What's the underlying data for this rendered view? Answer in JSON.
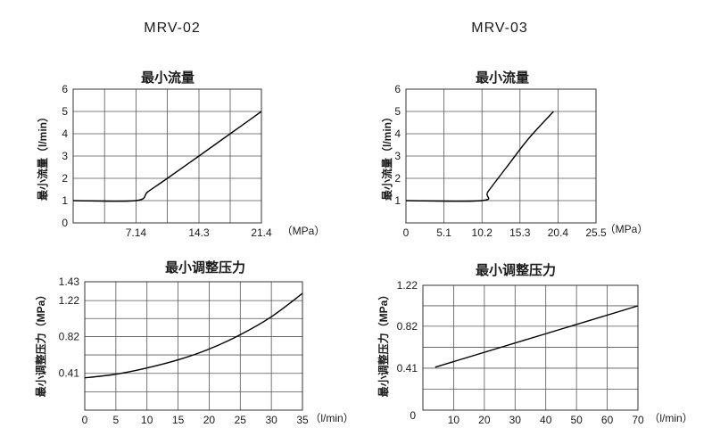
{
  "models": [
    "MRV-02",
    "MRV-03"
  ],
  "chart_data": [
    {
      "type": "line",
      "model": "MRV-02",
      "title": "最小流量",
      "ylabel": "最小流量（l/min）",
      "xunit": "（MPa）",
      "xlim": [
        0,
        21.4
      ],
      "ylim": [
        0,
        6
      ],
      "xgrid": [
        0,
        3.57,
        7.14,
        10.71,
        14.3,
        17.85,
        21.4
      ],
      "ygrid": [
        0,
        1,
        2,
        3,
        4,
        5,
        6
      ],
      "xticks": [
        {
          "v": 7.14,
          "t": "7.14"
        },
        {
          "v": 14.3,
          "t": "14.3"
        },
        {
          "v": 21.4,
          "t": "21.4"
        }
      ],
      "yticks": [
        {
          "v": 0,
          "t": "0"
        },
        {
          "v": 1,
          "t": "1"
        },
        {
          "v": 2,
          "t": "2"
        },
        {
          "v": 3,
          "t": "3"
        },
        {
          "v": 4,
          "t": "4"
        },
        {
          "v": 5,
          "t": "5"
        },
        {
          "v": 6,
          "t": "6"
        }
      ],
      "series": [
        {
          "name": "min flow",
          "x": [
            0,
            7.14,
            8.5,
            10.71,
            14.3,
            17.85,
            21.4
          ],
          "y": [
            1,
            1,
            1.4,
            2.0,
            3.0,
            4.0,
            5.0
          ]
        }
      ]
    },
    {
      "type": "line",
      "model": "MRV-03",
      "title": "最小流量",
      "ylabel": "最小流量（l/min）",
      "xunit": "（MPa）",
      "xlim": [
        0,
        25.5
      ],
      "ylim": [
        0,
        6
      ],
      "xgrid": [
        0,
        5.1,
        10.2,
        15.3,
        20.4,
        25.5
      ],
      "ygrid": [
        0,
        1,
        2,
        3,
        4,
        5,
        6
      ],
      "xticks": [
        {
          "v": 0,
          "t": "0"
        },
        {
          "v": 5.1,
          "t": "5.1"
        },
        {
          "v": 10.2,
          "t": "10.2"
        },
        {
          "v": 15.3,
          "t": "15.3"
        },
        {
          "v": 20.4,
          "t": "20.4"
        },
        {
          "v": 25.5,
          "t": "25.5"
        }
      ],
      "yticks": [
        {
          "v": 1,
          "t": "1"
        },
        {
          "v": 2,
          "t": "2"
        },
        {
          "v": 3,
          "t": "3"
        },
        {
          "v": 4,
          "t": "4"
        },
        {
          "v": 5,
          "t": "5"
        },
        {
          "v": 6,
          "t": "6"
        }
      ],
      "series": [
        {
          "name": "min flow",
          "x": [
            0,
            10.2,
            11,
            13.5,
            16.5,
            19.8
          ],
          "y": [
            1,
            1,
            1.4,
            2.5,
            3.8,
            5.0
          ]
        }
      ]
    },
    {
      "type": "line",
      "model": "MRV-02",
      "title": "最小调整压力",
      "ylabel": "最小调整压力（MPa）",
      "xunit": "（l/min）",
      "xlim": [
        0,
        35
      ],
      "ylim": [
        0,
        1.43
      ],
      "xgrid": [
        0,
        5,
        10,
        15,
        20,
        25,
        30,
        35
      ],
      "ygrid": [
        0,
        0.205,
        0.41,
        0.615,
        0.82,
        1.02,
        1.22,
        1.43
      ],
      "xticks": [
        {
          "v": 0,
          "t": "0"
        },
        {
          "v": 5,
          "t": "5"
        },
        {
          "v": 10,
          "t": "10"
        },
        {
          "v": 15,
          "t": "15"
        },
        {
          "v": 20,
          "t": "20"
        },
        {
          "v": 25,
          "t": "25"
        },
        {
          "v": 30,
          "t": "30"
        },
        {
          "v": 35,
          "t": "35"
        }
      ],
      "yticks": [
        {
          "v": 0.41,
          "t": "0.41"
        },
        {
          "v": 0.82,
          "t": "0.82"
        },
        {
          "v": 1.22,
          "t": "1.22"
        },
        {
          "v": 1.43,
          "t": "1.43"
        }
      ],
      "series": [
        {
          "name": "min adjust pressure",
          "x": [
            0,
            5,
            10,
            15,
            20,
            25,
            30,
            35
          ],
          "y": [
            0.36,
            0.4,
            0.47,
            0.56,
            0.68,
            0.84,
            1.04,
            1.3
          ]
        }
      ]
    },
    {
      "type": "line",
      "model": "MRV-03",
      "title": "最小调整压力",
      "ylabel": "最小调整压力（MPa）",
      "xunit": "（l/min）",
      "xlim": [
        0,
        70
      ],
      "ylim": [
        0,
        1.22
      ],
      "xgrid": [
        0,
        10,
        20,
        30,
        40,
        50,
        60,
        70
      ],
      "ygrid": [
        0,
        0.205,
        0.41,
        0.615,
        0.82,
        1.02,
        1.22
      ],
      "xticks": [
        {
          "v": 10,
          "t": "10"
        },
        {
          "v": 20,
          "t": "20"
        },
        {
          "v": 30,
          "t": "30"
        },
        {
          "v": 40,
          "t": "40"
        },
        {
          "v": 50,
          "t": "50"
        },
        {
          "v": 60,
          "t": "60"
        },
        {
          "v": 70,
          "t": "70"
        }
      ],
      "yticks": [
        {
          "v": 0.41,
          "t": "0.41"
        },
        {
          "v": 0.82,
          "t": "0.82"
        },
        {
          "v": 1.22,
          "t": "1.22"
        }
      ],
      "extra_labels": [
        {
          "text": "0",
          "pos": "below-origin"
        }
      ],
      "series": [
        {
          "name": "min adjust pressure",
          "x": [
            4,
            70
          ],
          "y": [
            0.42,
            1.02
          ]
        }
      ]
    }
  ]
}
